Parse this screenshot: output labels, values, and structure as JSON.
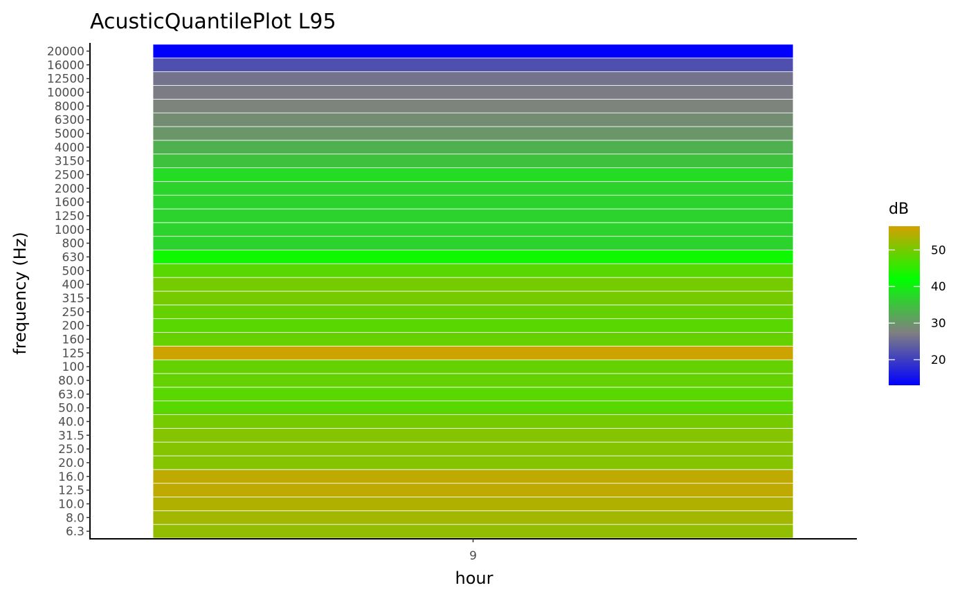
{
  "chart_data": {
    "type": "heatmap",
    "title": "AcusticQuantilePlot L95",
    "xlabel": "hour",
    "ylabel": "frequency (Hz)",
    "x_categories": [
      "9"
    ],
    "y_categories": [
      "6.3",
      "8.0",
      "10.0",
      "12.5",
      "16.0",
      "20.0",
      "25.0",
      "31.5",
      "40.0",
      "50.0",
      "63.0",
      "80.0",
      "100",
      "125",
      "160",
      "200",
      "250",
      "315",
      "400",
      "500",
      "630",
      "800",
      "1000",
      "1250",
      "1600",
      "2000",
      "2500",
      "3150",
      "4000",
      "5000",
      "6300",
      "8000",
      "10000",
      "12500",
      "16000",
      "20000"
    ],
    "values": [
      [
        52
      ],
      [
        53
      ],
      [
        54
      ],
      [
        55
      ],
      [
        55
      ],
      [
        51
      ],
      [
        51
      ],
      [
        51
      ],
      [
        50
      ],
      [
        48
      ],
      [
        48
      ],
      [
        49
      ],
      [
        49
      ],
      [
        56
      ],
      [
        49
      ],
      [
        48
      ],
      [
        49
      ],
      [
        50
      ],
      [
        50
      ],
      [
        48
      ],
      [
        43
      ],
      [
        37
      ],
      [
        37
      ],
      [
        37
      ],
      [
        37
      ],
      [
        37
      ],
      [
        38
      ],
      [
        35
      ],
      [
        33
      ],
      [
        30
      ],
      [
        29
      ],
      [
        28
      ],
      [
        27
      ],
      [
        26
      ],
      [
        22
      ],
      [
        13
      ]
    ],
    "legend": {
      "title": "dB",
      "ticks": [
        20,
        30,
        40,
        50
      ],
      "range": [
        13,
        56.5
      ],
      "colors": [
        "#0000ff",
        "#808080",
        "#00ff00",
        "#d4a000"
      ],
      "position": "right"
    },
    "grid": false
  }
}
